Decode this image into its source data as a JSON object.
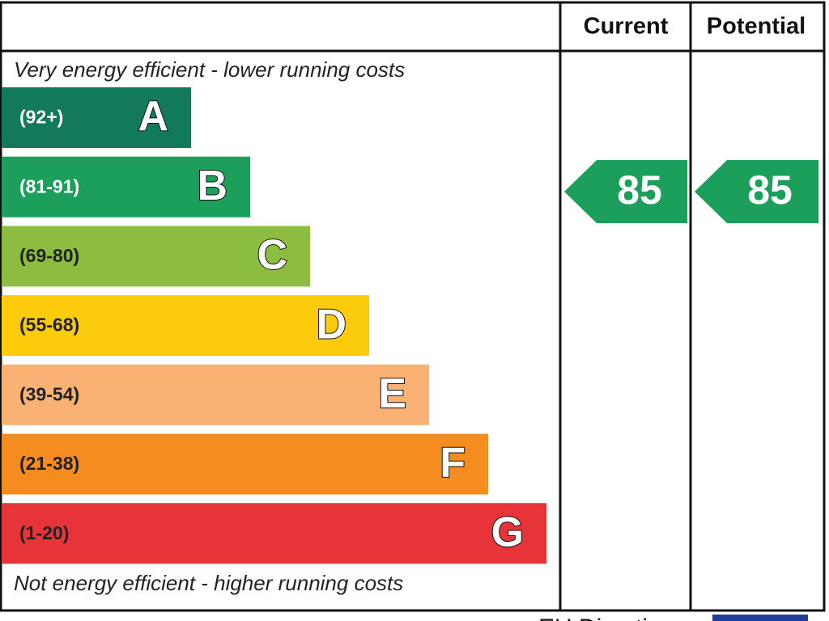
{
  "header": {
    "current": "Current",
    "potential": "Potential"
  },
  "top_note": "Very energy efficient - lower running costs",
  "bottom_note": "Not energy efficient - higher running costs",
  "bands": [
    {
      "range": "(92+)",
      "letter": "A",
      "color": "#127a5b"
    },
    {
      "range": "(81-91)",
      "letter": "B",
      "color": "#1b9f5b"
    },
    {
      "range": "(69-80)",
      "letter": "C",
      "color": "#8dbd40"
    },
    {
      "range": "(55-68)",
      "letter": "D",
      "color": "#fccb0b"
    },
    {
      "range": "(39-54)",
      "letter": "E",
      "color": "#f9b274"
    },
    {
      "range": "(21-38)",
      "letter": "F",
      "color": "#f48c20"
    },
    {
      "range": "(1-20)",
      "letter": "G",
      "color": "#e73439"
    }
  ],
  "current": {
    "rating": "85",
    "color": "#1b9f5b"
  },
  "potential": {
    "rating": "85",
    "color": "#1b9f5b"
  },
  "footer": "EU Directive"
}
